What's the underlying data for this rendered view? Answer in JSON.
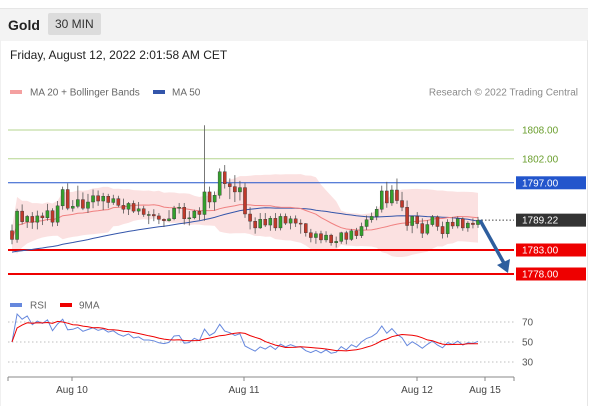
{
  "header": {
    "instrument": "Gold",
    "timeframe": "30 MIN"
  },
  "datetime": "Friday, August 12, 2022 2:01:58 AM CET",
  "legend": {
    "ma20_bb": "MA 20 + Bollinger Bands",
    "ma50": "MA 50",
    "credit": "Research © 2022 Trading Central"
  },
  "rsi_legend": {
    "rsi": "RSI",
    "ma9": "9MA"
  },
  "colors": {
    "candle_up": "#33a02c",
    "candle_down": "#c0392b",
    "bb_fill": "#fadcdc",
    "ma20": "#f08080",
    "ma50": "#3355aa",
    "resistance": "#b5d68f",
    "pivot": "#2255cc",
    "support": "#ee0000",
    "arrow": "#2e5e9e",
    "last_price": "#333333",
    "rsi": "#6688dd",
    "rsi_ma": "#ee0000"
  },
  "chart_data": [
    {
      "type": "candlestick",
      "x_ticks": [
        "Aug 10",
        "Aug 11",
        "Aug 12",
        "Aug 15"
      ],
      "price_labels": [
        "1808.00",
        "1802.00",
        "1797.00",
        "1789.22",
        "1783.00",
        "1778.00"
      ],
      "levels": {
        "resistance": [
          1808.0,
          1802.0
        ],
        "pivot": 1797.0,
        "last_price": 1789.22,
        "support": [
          1783.0,
          1778.0
        ]
      },
      "ylim": [
        1775.5,
        1813
      ],
      "projection": {
        "from": 1789.22,
        "to": 1778.0
      },
      "series": [
        {
          "name": "MA 20 + Bollinger Bands"
        },
        {
          "name": "MA 50"
        }
      ],
      "candles": [
        [
          1787.0,
          1788.3,
          1784.2,
          1785.2
        ],
        [
          1785.2,
          1791.6,
          1784.5,
          1791.1
        ],
        [
          1791.1,
          1792.5,
          1788.3,
          1788.9
        ],
        [
          1788.9,
          1790.3,
          1787.6,
          1790.0
        ],
        [
          1790.0,
          1790.9,
          1787.4,
          1788.8
        ],
        [
          1788.8,
          1791.2,
          1787.3,
          1790.1
        ],
        [
          1790.1,
          1790.8,
          1788.2,
          1789.7
        ],
        [
          1789.7,
          1792.6,
          1789.1,
          1791.2
        ],
        [
          1791.2,
          1791.7,
          1787.9,
          1788.8
        ],
        [
          1788.8,
          1793.2,
          1788.0,
          1792.2
        ],
        [
          1792.2,
          1796.2,
          1791.4,
          1795.6
        ],
        [
          1795.6,
          1796.9,
          1791.3,
          1791.7
        ],
        [
          1791.7,
          1793.4,
          1791.0,
          1792.1
        ],
        [
          1792.1,
          1796.4,
          1791.7,
          1793.5
        ],
        [
          1793.5,
          1795.0,
          1791.3,
          1791.7
        ],
        [
          1791.7,
          1794.7,
          1790.7,
          1793.0
        ],
        [
          1793.0,
          1795.6,
          1791.7,
          1794.3
        ],
        [
          1794.3,
          1795.4,
          1792.2,
          1793.2
        ],
        [
          1793.2,
          1794.9,
          1791.3,
          1794.2
        ],
        [
          1794.2,
          1794.7,
          1791.7,
          1792.9
        ],
        [
          1792.9,
          1794.5,
          1792.4,
          1793.7
        ],
        [
          1793.7,
          1794.3,
          1791.9,
          1792.3
        ],
        [
          1792.3,
          1793.7,
          1790.6,
          1791.5
        ],
        [
          1791.5,
          1793.0,
          1790.3,
          1792.7
        ],
        [
          1792.7,
          1793.3,
          1790.7,
          1791.1
        ],
        [
          1791.1,
          1793.0,
          1790.3,
          1791.6
        ],
        [
          1791.6,
          1792.2,
          1789.9,
          1790.4
        ],
        [
          1790.4,
          1791.1,
          1788.4,
          1790.4
        ],
        [
          1790.4,
          1791.5,
          1789.0,
          1790.1
        ],
        [
          1790.1,
          1790.7,
          1788.4,
          1789.4
        ],
        [
          1789.4,
          1789.6,
          1787.8,
          1789.1
        ],
        [
          1789.1,
          1791.3,
          1788.9,
          1789.5
        ],
        [
          1789.5,
          1792.2,
          1789.2,
          1791.7
        ],
        [
          1791.7,
          1792.8,
          1790.6,
          1791.9
        ],
        [
          1791.9,
          1792.8,
          1788.3,
          1789.5
        ],
        [
          1789.5,
          1791.1,
          1788.1,
          1789.7
        ],
        [
          1789.7,
          1791.4,
          1789.4,
          1791.1
        ],
        [
          1791.1,
          1791.9,
          1789.2,
          1790.4
        ],
        [
          1790.4,
          1809.0,
          1789.1,
          1795.1
        ],
        [
          1795.1,
          1796.2,
          1791.7,
          1793.0
        ],
        [
          1793.0,
          1795.2,
          1791.2,
          1794.4
        ],
        [
          1794.4,
          1800.0,
          1793.7,
          1799.3
        ],
        [
          1799.3,
          1800.7,
          1795.8,
          1796.8
        ],
        [
          1796.8,
          1797.9,
          1793.6,
          1796.2
        ],
        [
          1796.2,
          1798.6,
          1793.0,
          1795.1
        ],
        [
          1795.1,
          1797.4,
          1793.3,
          1796.0
        ],
        [
          1796.0,
          1797.0,
          1789.7,
          1790.5
        ],
        [
          1790.5,
          1791.9,
          1787.3,
          1789.0
        ],
        [
          1789.0,
          1789.8,
          1786.4,
          1787.6
        ],
        [
          1787.6,
          1790.7,
          1787.4,
          1789.4
        ],
        [
          1789.4,
          1790.7,
          1787.8,
          1788.2
        ],
        [
          1788.2,
          1790.1,
          1787.0,
          1789.6
        ],
        [
          1789.6,
          1790.7,
          1787.0,
          1787.6
        ],
        [
          1787.6,
          1790.6,
          1787.1,
          1790.0
        ],
        [
          1790.0,
          1790.6,
          1788.2,
          1788.6
        ],
        [
          1788.6,
          1790.1,
          1787.3,
          1789.5
        ],
        [
          1789.5,
          1790.2,
          1787.8,
          1788.6
        ],
        [
          1788.6,
          1789.4,
          1786.4,
          1788.5
        ],
        [
          1788.5,
          1788.6,
          1785.8,
          1786.6
        ],
        [
          1786.6,
          1787.4,
          1784.6,
          1785.6
        ],
        [
          1785.6,
          1786.9,
          1784.3,
          1786.4
        ],
        [
          1786.4,
          1787.0,
          1784.4,
          1785.1
        ],
        [
          1785.1,
          1786.9,
          1784.6,
          1786.1
        ],
        [
          1786.1,
          1786.4,
          1783.9,
          1784.5
        ],
        [
          1784.5,
          1785.8,
          1783.5,
          1784.8
        ],
        [
          1784.8,
          1786.8,
          1784.3,
          1786.6
        ],
        [
          1786.6,
          1787.0,
          1784.2,
          1785.2
        ],
        [
          1785.2,
          1787.4,
          1784.9,
          1787.0
        ],
        [
          1787.0,
          1787.6,
          1785.3,
          1786.0
        ],
        [
          1786.0,
          1788.7,
          1785.5,
          1787.9
        ],
        [
          1787.9,
          1790.2,
          1787.2,
          1789.3
        ],
        [
          1789.3,
          1790.8,
          1788.7,
          1790.0
        ],
        [
          1790.0,
          1792.1,
          1789.2,
          1791.5
        ],
        [
          1791.5,
          1796.4,
          1790.8,
          1795.3
        ],
        [
          1795.3,
          1797.2,
          1791.8,
          1792.8
        ],
        [
          1792.8,
          1796.5,
          1792.2,
          1795.5
        ],
        [
          1795.5,
          1797.9,
          1792.6,
          1793.3
        ],
        [
          1793.3,
          1795.1,
          1791.1,
          1791.9
        ],
        [
          1791.9,
          1793.3,
          1787.0,
          1788.1
        ],
        [
          1788.1,
          1790.2,
          1786.5,
          1790.0
        ],
        [
          1790.0,
          1790.9,
          1787.5,
          1788.5
        ],
        [
          1788.5,
          1789.6,
          1785.5,
          1786.5
        ],
        [
          1786.5,
          1789.2,
          1786.1,
          1788.3
        ],
        [
          1788.3,
          1790.3,
          1787.9,
          1789.9
        ],
        [
          1789.9,
          1790.2,
          1787.0,
          1787.9
        ],
        [
          1787.9,
          1788.9,
          1785.4,
          1786.4
        ],
        [
          1786.4,
          1789.4,
          1785.6,
          1788.8
        ],
        [
          1788.8,
          1789.9,
          1787.4,
          1788.0
        ],
        [
          1788.0,
          1790.0,
          1787.5,
          1789.5
        ],
        [
          1789.5,
          1789.8,
          1787.0,
          1787.6
        ],
        [
          1787.6,
          1789.0,
          1786.8,
          1788.6
        ],
        [
          1788.6,
          1789.6,
          1787.5,
          1788.3
        ],
        [
          1788.3,
          1789.9,
          1787.6,
          1789.2
        ]
      ]
    },
    {
      "type": "line",
      "title": "RSI",
      "y_ticks": [
        30,
        50,
        70
      ],
      "ylim": [
        20,
        80
      ],
      "series": [
        {
          "name": "RSI"
        },
        {
          "name": "9MA"
        }
      ],
      "x_ticks": [
        "Aug 10",
        "Aug 11",
        "Aug 12",
        "Aug 15"
      ]
    }
  ]
}
